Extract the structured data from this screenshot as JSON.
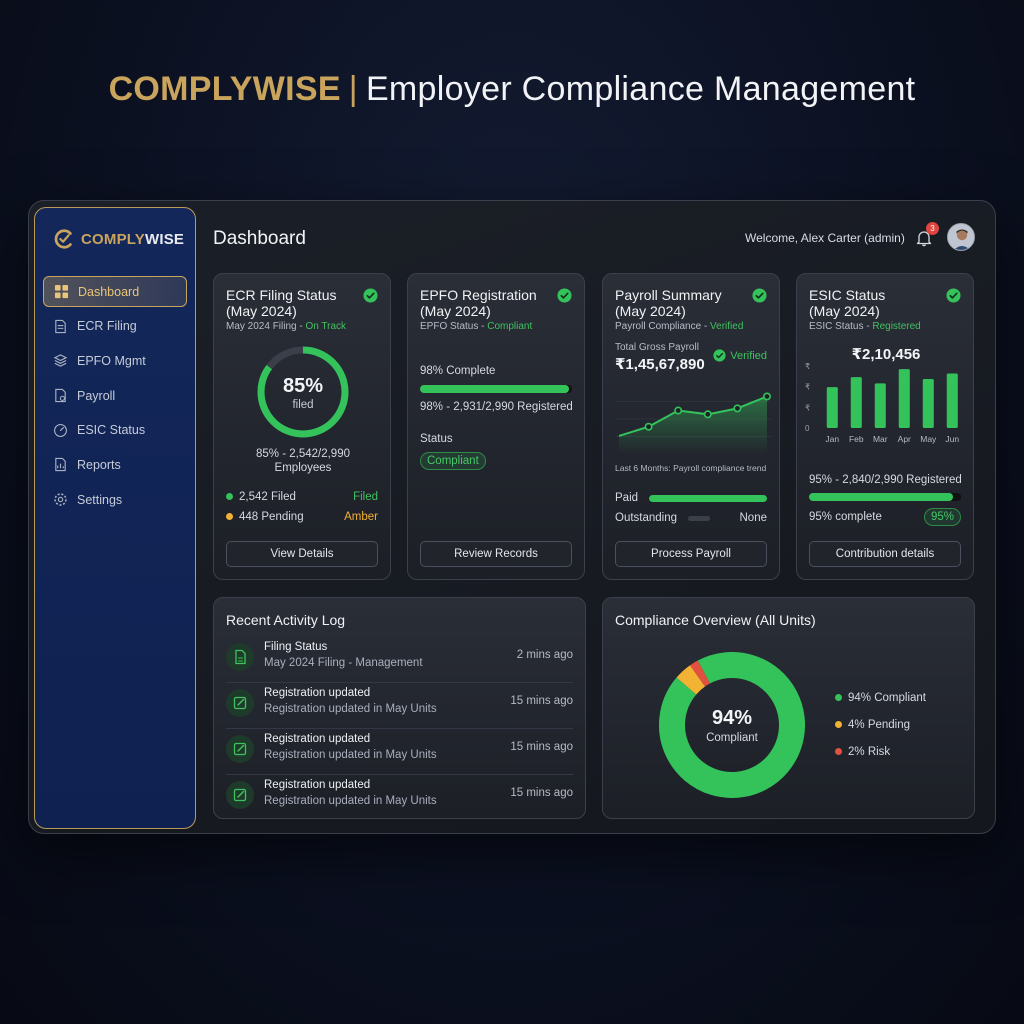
{
  "headline": {
    "brand": "COMPLYWISE",
    "separator": "|",
    "subtitle": "Employer Compliance Management"
  },
  "sidebar": {
    "logo": {
      "part1": "COMPLY",
      "part2": "WISE"
    },
    "items": [
      {
        "label": "Dashboard",
        "icon": "grid-icon",
        "active": true
      },
      {
        "label": "ECR Filing",
        "icon": "document-icon"
      },
      {
        "label": "EPFO Mgmt",
        "icon": "layers-icon"
      },
      {
        "label": "Payroll",
        "icon": "payroll-doc-icon"
      },
      {
        "label": "ESIC Status",
        "icon": "gauge-icon"
      },
      {
        "label": "Reports",
        "icon": "report-icon"
      },
      {
        "label": "Settings",
        "icon": "gear-icon"
      }
    ]
  },
  "header": {
    "title": "Dashboard",
    "welcome": "Welcome, Alex Carter (admin)",
    "notifications": "3"
  },
  "ecr": {
    "title1": "ECR Filing Status",
    "title2": "(May 2024)",
    "sub_prefix": "May 2024 Filing - ",
    "sub_status": "On Track",
    "percent_label": "85%",
    "percent_value": 0.85,
    "filed_word": "filed",
    "detail1": "85% - 2,542/2,990",
    "detail2": "Employees",
    "filed_count": "2,542 Filed",
    "filed_status": "Filed",
    "pending_count": "448 Pending",
    "pending_status": "Amber",
    "button": "View Details"
  },
  "epfo": {
    "title1": "EPFO Registration",
    "title2": "(May 2024)",
    "sub_prefix": "EPFO Status - ",
    "sub_status": "Compliant",
    "complete_label": "98% Complete",
    "complete_value": 0.98,
    "registered": "98% - 2,931/2,990 Registered",
    "status_label": "Status",
    "status_value": "Compliant",
    "button": "Review Records"
  },
  "payroll": {
    "title1": "Payroll Summary",
    "title2": "(May 2024)",
    "sub_prefix": "Payroll Compliance - ",
    "sub_status": "Verified",
    "gross_label": "Total Gross Payroll",
    "gross_value": "₹1,45,67,890",
    "verified": "Verified",
    "trend_caption": "Last 6 Months: Payroll compliance trend",
    "trend": [
      0.15,
      0.32,
      0.62,
      0.55,
      0.66,
      0.88
    ],
    "paid_label": "Paid",
    "paid_value": 1.0,
    "outstanding_label": "Outstanding",
    "outstanding_value": "None",
    "button": "Process Payroll"
  },
  "esic": {
    "title1": "ESIC Status",
    "title2": "(May 2024)",
    "sub_prefix": "ESIC Status - ",
    "sub_status": "Registered",
    "amount": "₹2,10,456",
    "y_ticks": [
      "₹",
      "₹",
      "₹",
      "0"
    ],
    "months": [
      "Jan",
      "Feb",
      "Mar",
      "Apr",
      "May",
      "Jun"
    ],
    "bars": [
      0.66,
      0.82,
      0.72,
      0.95,
      0.79,
      0.88
    ],
    "registered": "95% - 2,840/2,990 Registered",
    "complete_value": 0.95,
    "complete_label": "95% complete",
    "complete_pill": "95%",
    "button": "Contribution details"
  },
  "activity": {
    "title": "Recent Activity Log",
    "rows": [
      {
        "title": "Filing Status",
        "sub": "May 2024 Filing - Management",
        "time": "2 mins ago",
        "icon": "file-icon"
      },
      {
        "title": "Registration updated",
        "sub": "Registration updated in May Units",
        "time": "15 mins ago",
        "icon": "edit-icon"
      },
      {
        "title": "Registration updated",
        "sub": "Registration updated in May Units",
        "time": "15 mins ago",
        "icon": "edit-icon"
      },
      {
        "title": "Registration updated",
        "sub": "Registration updated in May Units",
        "time": "15 mins ago",
        "icon": "edit-icon"
      }
    ]
  },
  "overview": {
    "title": "Compliance Overview (All Units)",
    "center_value": "94%",
    "center_label": "Compliant",
    "segments": [
      {
        "label": "94% Compliant",
        "value": 94,
        "color": "#34c35b"
      },
      {
        "label": "4% Pending",
        "value": 4,
        "color": "#f2b233"
      },
      {
        "label": "2% Risk",
        "value": 2,
        "color": "#e2503f"
      }
    ]
  },
  "colors": {
    "accent_gold": "#c9a45c",
    "success": "#34c35b",
    "amber": "#f2b233",
    "danger": "#e2503f"
  }
}
